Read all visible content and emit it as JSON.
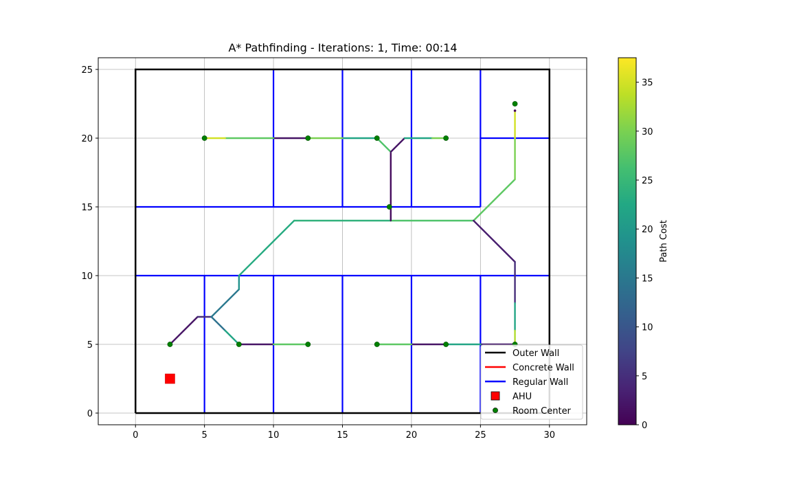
{
  "chart_data": {
    "type": "line",
    "title": "A* Pathfinding - Iterations: 1, Time: 00:14",
    "xlim": [
      -2.7,
      32.7
    ],
    "ylim": [
      -0.85,
      25.85
    ],
    "x_ticks": [
      0,
      5,
      10,
      15,
      20,
      25,
      30
    ],
    "y_ticks": [
      0,
      5,
      10,
      15,
      20,
      25
    ],
    "grid": true,
    "colorbar": {
      "label": "Path Cost",
      "range": [
        0,
        37.5
      ],
      "ticks": [
        0,
        5,
        10,
        15,
        20,
        25,
        30,
        35
      ],
      "colormap": "viridis"
    },
    "legend": {
      "location": "lower right",
      "entries": [
        {
          "label": "Outer Wall",
          "kind": "line",
          "color": "#000000"
        },
        {
          "label": "Concrete Wall",
          "kind": "line",
          "color": "#ff0000"
        },
        {
          "label": "Regular Wall",
          "kind": "line",
          "color": "#0000ff"
        },
        {
          "label": "AHU",
          "kind": "square",
          "color": "#ff0000"
        },
        {
          "label": "Room Center",
          "kind": "circle",
          "color": "#008000"
        }
      ]
    },
    "outer_wall": [
      [
        0,
        0
      ],
      [
        30,
        0
      ],
      [
        30,
        25
      ],
      [
        0,
        25
      ],
      [
        0,
        0
      ]
    ],
    "regular_walls": [
      [
        [
          0,
          15
        ],
        [
          25,
          15
        ]
      ],
      [
        [
          0,
          10
        ],
        [
          30,
          10
        ]
      ],
      [
        [
          25,
          20
        ],
        [
          30,
          20
        ]
      ],
      [
        [
          10,
          15
        ],
        [
          10,
          25
        ]
      ],
      [
        [
          15,
          15
        ],
        [
          15,
          25
        ]
      ],
      [
        [
          20,
          15
        ],
        [
          20,
          25
        ]
      ],
      [
        [
          25,
          15
        ],
        [
          25,
          25
        ]
      ],
      [
        [
          5,
          0
        ],
        [
          5,
          10
        ]
      ],
      [
        [
          10,
          0
        ],
        [
          10,
          10
        ]
      ],
      [
        [
          15,
          0
        ],
        [
          15,
          10
        ]
      ],
      [
        [
          20,
          0
        ],
        [
          20,
          10
        ]
      ],
      [
        [
          25,
          0
        ],
        [
          25,
          10
        ]
      ]
    ],
    "ahu": [
      2.5,
      2.5
    ],
    "room_centers": [
      [
        5,
        20
      ],
      [
        12.5,
        20
      ],
      [
        17.5,
        20
      ],
      [
        22.5,
        20
      ],
      [
        27.5,
        22.5
      ],
      [
        2.5,
        5
      ],
      [
        7.5,
        5
      ],
      [
        12.5,
        5
      ],
      [
        17.5,
        5
      ],
      [
        22.5,
        5
      ],
      [
        27.5,
        5
      ],
      [
        18.4,
        15
      ]
    ],
    "paths": [
      {
        "points": [
          [
            2.5,
            5
          ],
          [
            4.5,
            7
          ]
        ],
        "cost": 2
      },
      {
        "points": [
          [
            4.5,
            7
          ],
          [
            5.5,
            7
          ]
        ],
        "cost": 5
      },
      {
        "points": [
          [
            5.5,
            7
          ],
          [
            6.5,
            6
          ]
        ],
        "cost": 14
      },
      {
        "points": [
          [
            6.5,
            6
          ],
          [
            7.5,
            5
          ]
        ],
        "cost": 22
      },
      {
        "points": [
          [
            7.5,
            5
          ],
          [
            10,
            5
          ]
        ],
        "cost": 2
      },
      {
        "points": [
          [
            10,
            5
          ],
          [
            12.5,
            5
          ]
        ],
        "cost": 28
      },
      {
        "points": [
          [
            5.5,
            7
          ],
          [
            7.5,
            9
          ]
        ],
        "cost": 15
      },
      {
        "points": [
          [
            7.5,
            9
          ],
          [
            7.5,
            10
          ]
        ],
        "cost": 19
      },
      {
        "points": [
          [
            7.5,
            10
          ],
          [
            11.5,
            14
          ]
        ],
        "cost": 23
      },
      {
        "points": [
          [
            11.5,
            14
          ],
          [
            18.5,
            14
          ]
        ],
        "cost": 24
      },
      {
        "points": [
          [
            18.5,
            14
          ],
          [
            24.5,
            14
          ]
        ],
        "cost": 27
      },
      {
        "points": [
          [
            18.5,
            14
          ],
          [
            18.5,
            19
          ]
        ],
        "cost": 1
      },
      {
        "points": [
          [
            18.5,
            19
          ],
          [
            17.5,
            20
          ]
        ],
        "cost": 27
      },
      {
        "points": [
          [
            18.5,
            19
          ],
          [
            19.5,
            20
          ]
        ],
        "cost": 2
      },
      {
        "points": [
          [
            19.5,
            20
          ],
          [
            21.5,
            20
          ]
        ],
        "cost": 22
      },
      {
        "points": [
          [
            21.5,
            20
          ],
          [
            22.5,
            20
          ]
        ],
        "cost": 30
      },
      {
        "points": [
          [
            17.5,
            20
          ],
          [
            15,
            20
          ]
        ],
        "cost": 22
      },
      {
        "points": [
          [
            15,
            20
          ],
          [
            12.5,
            20
          ]
        ],
        "cost": 30
      },
      {
        "points": [
          [
            12.5,
            20
          ],
          [
            10,
            20
          ]
        ],
        "cost": 2
      },
      {
        "points": [
          [
            10,
            20
          ],
          [
            6.5,
            20
          ]
        ],
        "cost": 28
      },
      {
        "points": [
          [
            6.5,
            20
          ],
          [
            5,
            20
          ]
        ],
        "cost": 35
      },
      {
        "points": [
          [
            24.5,
            14
          ],
          [
            27.5,
            17
          ]
        ],
        "cost": 28
      },
      {
        "points": [
          [
            27.5,
            17
          ],
          [
            27.5,
            20
          ]
        ],
        "cost": 30
      },
      {
        "points": [
          [
            27.5,
            20
          ],
          [
            27.5,
            22
          ]
        ],
        "cost": 35
      },
      {
        "points": [
          [
            24.5,
            14
          ],
          [
            27.5,
            11
          ]
        ],
        "cost": 3
      },
      {
        "points": [
          [
            27.5,
            11
          ],
          [
            27.5,
            8
          ]
        ],
        "cost": 5
      },
      {
        "points": [
          [
            27.5,
            8
          ],
          [
            27.5,
            6
          ]
        ],
        "cost": 22
      },
      {
        "points": [
          [
            27.5,
            6
          ],
          [
            27.5,
            5
          ]
        ],
        "cost": 33
      },
      {
        "points": [
          [
            27.5,
            5
          ],
          [
            25,
            5
          ]
        ],
        "cost": 3
      },
      {
        "points": [
          [
            25,
            5
          ],
          [
            22.5,
            5
          ]
        ],
        "cost": 22
      },
      {
        "points": [
          [
            22.5,
            5
          ],
          [
            20,
            5
          ]
        ],
        "cost": 2
      },
      {
        "points": [
          [
            20,
            5
          ],
          [
            17.5,
            5
          ]
        ],
        "cost": 28
      }
    ]
  }
}
